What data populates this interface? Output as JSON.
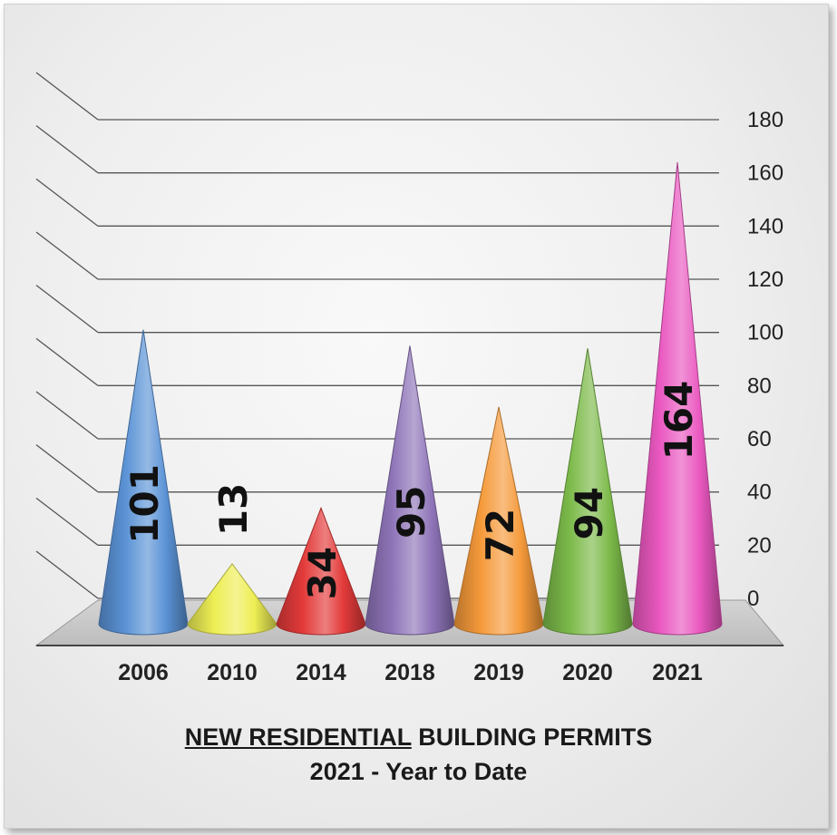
{
  "caption": {
    "line1_underlined": "NEW RESIDENTIAL",
    "line1_rest": "BUILDING PERMITS",
    "line2": "2021 - Year to Date"
  },
  "chart_data": {
    "type": "bar",
    "shape": "cone",
    "title": "NEW RESIDENTIAL BUILDING PERMITS 2021 - Year to Date",
    "categories": [
      "2006",
      "2010",
      "2014",
      "2018",
      "2019",
      "2020",
      "2021"
    ],
    "values": [
      101,
      13,
      34,
      95,
      72,
      94,
      164
    ],
    "colors": [
      "#5b93d6",
      "#eeee55",
      "#e33a3a",
      "#8e74b8",
      "#f59a3a",
      "#7cba4a",
      "#ea58c0"
    ],
    "ylim": [
      0,
      180
    ],
    "yticks": [
      0,
      20,
      40,
      60,
      80,
      100,
      120,
      140,
      160,
      180
    ],
    "y_axis_position": "right",
    "grid": true,
    "data_labels": true,
    "data_label_orientation": "vertical"
  }
}
